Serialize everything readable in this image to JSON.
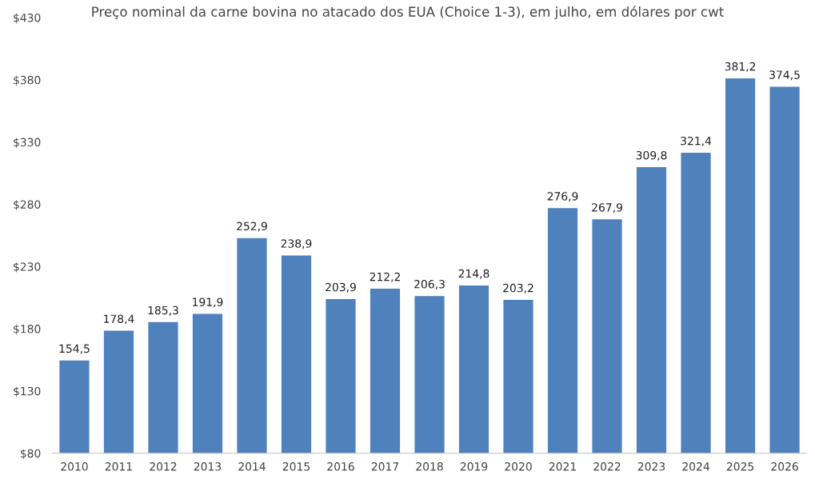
{
  "chart_data": {
    "type": "bar",
    "title": "Preço nominal da carne bovina no atacado dos EUA (Choice 1-3), em julho, em dólares por cwt",
    "categories": [
      "2010",
      "2011",
      "2012",
      "2013",
      "2014",
      "2015",
      "2016",
      "2017",
      "2018",
      "2019",
      "2020",
      "2021",
      "2022",
      "2023",
      "2024",
      "2025",
      "2026"
    ],
    "values": [
      154.5,
      178.4,
      185.3,
      191.9,
      252.9,
      238.9,
      203.9,
      212.2,
      206.3,
      214.8,
      203.2,
      276.9,
      267.9,
      309.8,
      321.4,
      381.2,
      374.5
    ],
    "value_labels": [
      "154,5",
      "178,4",
      "185,3",
      "191,9",
      "252,9",
      "238,9",
      "203,9",
      "212,2",
      "206,3",
      "214,8",
      "203,2",
      "276,9",
      "267,9",
      "309,8",
      "321,4",
      "381,2",
      "374,5"
    ],
    "color": "#4f81bd",
    "ylim": [
      80,
      430
    ],
    "yticks": [
      {
        "value": 80,
        "label": "$80"
      },
      {
        "value": 130,
        "label": "$130"
      },
      {
        "value": 180,
        "label": "$180"
      },
      {
        "value": 230,
        "label": "$230"
      },
      {
        "value": 280,
        "label": "$280"
      },
      {
        "value": 330,
        "label": "$330"
      },
      {
        "value": 380,
        "label": "$380"
      },
      {
        "value": 430,
        "label": "$430"
      }
    ],
    "grid": false,
    "legend": false
  }
}
